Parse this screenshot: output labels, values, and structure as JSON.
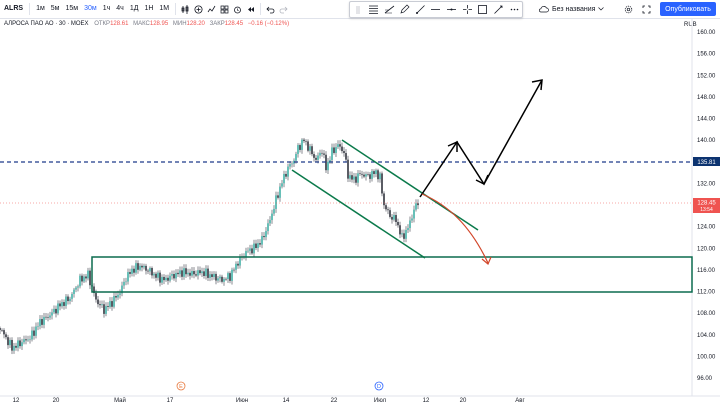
{
  "toolbar": {
    "symbol": "ALRS",
    "intervals": [
      "1м",
      "5м",
      "15м",
      "30м",
      "1ч",
      "4ч",
      "1Д",
      "1Н",
      "1М"
    ],
    "active_interval": "30м"
  },
  "layout": {
    "name": "Без названия"
  },
  "publish": {
    "label": "Опубликовать"
  },
  "legend": {
    "title": "АЛРОСА ПАО АО · 30 · MOEX",
    "open_k": "ОТКР",
    "open_v": "128.61",
    "high_k": "МАКС",
    "high_v": "128.95",
    "low_k": "МИН",
    "low_v": "128.20",
    "close_k": "ЗАКР",
    "close_v": "128.45",
    "change": "−0.16 (−0.12%)"
  },
  "price_axis": {
    "currency": "RUB",
    "ticks": [
      "160.00",
      "156.00",
      "152.00",
      "148.00",
      "144.00",
      "140.00",
      "136.00",
      "132.00",
      "128.00",
      "124.00",
      "120.00",
      "116.00",
      "112.00",
      "108.00",
      "104.00",
      "100.00",
      "96.00"
    ],
    "last_price_label": "128.45",
    "last_time_label": "13:54",
    "hline_label": "135.81"
  },
  "time_axis": {
    "ticks": [
      "12",
      "20",
      "Май",
      "17",
      "Июн",
      "14",
      "22",
      "Июл",
      "12",
      "20",
      "Авг"
    ],
    "marker_e": "E",
    "marker_d": "D"
  },
  "colors": {
    "up": "#26a69a",
    "down": "#ef5350",
    "candle": "#131722",
    "hline": "#1e3a8a",
    "channel": "#0b7a4b",
    "box": "#0b6b4f",
    "forecast_black": "#000000",
    "forecast_red": "#d2462a",
    "label_dark": "#0c3370"
  },
  "icons": [
    "plus-icon",
    "compare-icon",
    "indicators-icon",
    "undo-icon",
    "redo-icon",
    "cross-icon",
    "line-icon",
    "pencil-icon",
    "ray-icon",
    "trend-icon",
    "rect-icon",
    "brush-icon",
    "gear-icon",
    "cloud-icon",
    "camera-icon",
    "chevron-down-icon"
  ]
}
